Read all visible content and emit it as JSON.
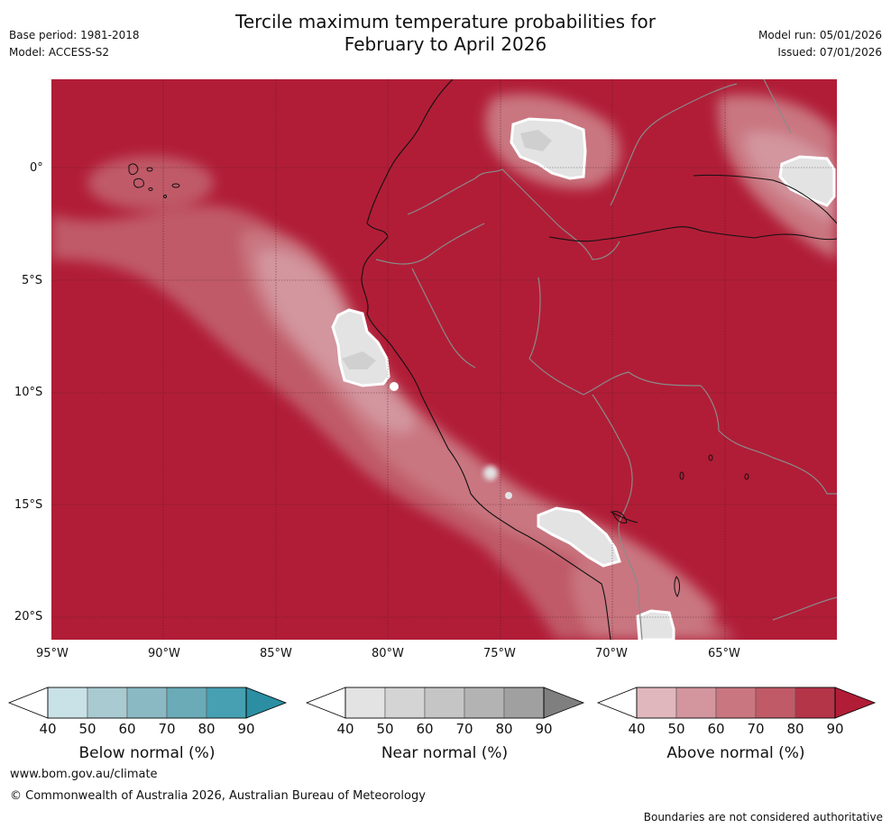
{
  "header": {
    "title_line1": "Tercile maximum temperature probabilities for",
    "title_line2": "February to April 2026",
    "base_period": "Base period: 1981-2018",
    "model": "Model: ACCESS-S2",
    "model_run": "Model run: 05/01/2026",
    "issued": "Issued: 07/01/2026"
  },
  "map": {
    "lat_labels": [
      "0°",
      "5°S",
      "10°S",
      "15°S",
      "20°S"
    ],
    "lon_labels": [
      "95°W",
      "90°W",
      "85°W",
      "80°W",
      "75°W",
      "70°W",
      "65°W"
    ]
  },
  "legends": [
    {
      "title": "Below normal (%)",
      "ticks": [
        "40",
        "50",
        "60",
        "70",
        "80",
        "90"
      ],
      "colors": [
        "#ffffff",
        "#c9e2e7",
        "#a8cad0",
        "#8ab9c4",
        "#6aabb7",
        "#46a0b1",
        "#2b8ea2"
      ]
    },
    {
      "title": "Near normal (%)",
      "ticks": [
        "40",
        "50",
        "60",
        "70",
        "80",
        "90"
      ],
      "colors": [
        "#ffffff",
        "#e3e3e3",
        "#d4d4d4",
        "#c5c5c5",
        "#b3b3b3",
        "#a0a0a0",
        "#7f7f7f"
      ]
    },
    {
      "title": "Above normal (%)",
      "ticks": [
        "40",
        "50",
        "60",
        "70",
        "80",
        "90"
      ],
      "colors": [
        "#ffffff",
        "#e0b7bd",
        "#d3959e",
        "#c97680",
        "#c05a67",
        "#b43448",
        "#b11d37"
      ]
    }
  ],
  "footer": {
    "website": "www.bom.gov.au/climate",
    "copyright": "© Commonwealth of Australia 2026, Australian Bureau of Meteorology",
    "disclaimer": "Boundaries are not considered authoritative"
  }
}
